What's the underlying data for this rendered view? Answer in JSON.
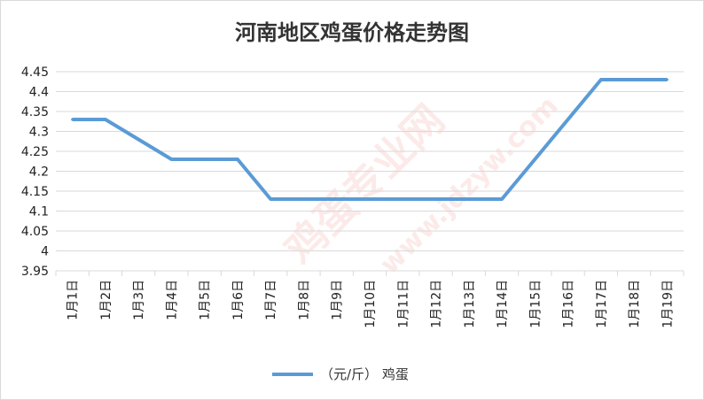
{
  "chart_data": {
    "type": "line",
    "title": "河南地区鸡蛋价格走势图",
    "categories": [
      "1月1日",
      "1月2日",
      "1月3日",
      "1月4日",
      "1月5日",
      "1月6日",
      "1月7日",
      "1月8日",
      "1月9日",
      "1月10日",
      "1月11日",
      "1月12日",
      "1月13日",
      "1月14日",
      "1月15日",
      "1月16日",
      "1月17日",
      "1月18日",
      "1月19日"
    ],
    "series": [
      {
        "name": "（元/斤） 鸡蛋",
        "values": [
          4.33,
          4.33,
          4.28,
          4.23,
          4.23,
          4.23,
          4.13,
          4.13,
          4.13,
          4.13,
          4.13,
          4.13,
          4.13,
          4.13,
          4.23,
          4.33,
          4.43,
          4.43,
          4.43
        ]
      }
    ],
    "ylim": [
      3.95,
      4.45
    ],
    "yticks": [
      "3.95",
      "4",
      "4.05",
      "4.1",
      "4.15",
      "4.2",
      "4.25",
      "4.3",
      "4.35",
      "4.4",
      "4.45"
    ],
    "xlabel": "",
    "ylabel": "",
    "grid": true,
    "legend": "bottom",
    "colors": {
      "line": "#5b9bd5",
      "grid": "#d9d9d9",
      "watermark": "#e53935"
    }
  },
  "watermark": {
    "main": "鸡蛋专业网",
    "url": "www.jdzyw.com"
  }
}
